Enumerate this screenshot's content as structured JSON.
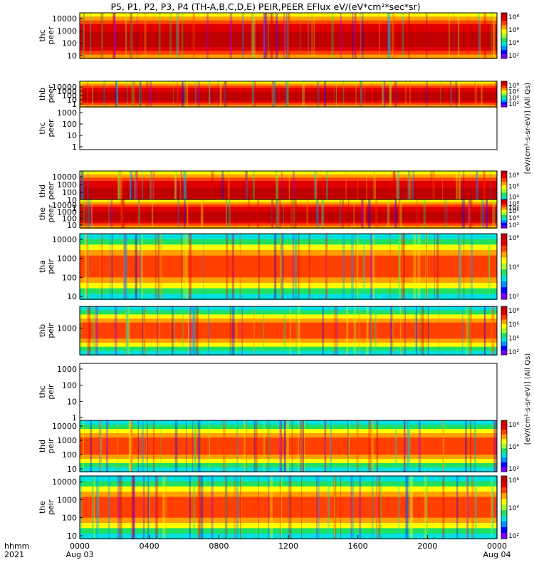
{
  "chart_data": {
    "type": "heatmap",
    "title": "P5, P1, P2, P3, P4 (TH-A,B,C,D,E) PEIR,PEER EFlux eV/(eV*cm²*sec*sr)",
    "x_axis": {
      "label_line1": "hhmm",
      "label_line2": "2021",
      "range_hours": [
        0,
        24
      ],
      "tick_labels": [
        "0000",
        "0400",
        "0800",
        "1200",
        "1600",
        "2000",
        "0000"
      ],
      "date_labels": [
        "Aug 03",
        "",
        "",
        "",
        "",
        "",
        "Aug 04"
      ]
    },
    "colorbar": {
      "electron_units": "[eV/(cm²-s-sr-eV)] (All Qs)",
      "ion_units": "[eV/(cm²-s-sr-eV)] (All Qs)",
      "colors": [
        "#7f00ff",
        "#0000ff",
        "#0090ff",
        "#00e0e0",
        "#20e060",
        "#a0ff30",
        "#ffff00",
        "#ffa000",
        "#ff4000",
        "#e00000",
        "#c00000"
      ]
    },
    "panels": [
      {
        "probe": "thc",
        "species": "peer",
        "yticks": [
          "10000",
          "1000",
          "100",
          "10"
        ],
        "cb_ticks": [
          "10⁸",
          "10⁶",
          "10⁴",
          "10²"
        ],
        "empty": false
      },
      {
        "probe": "thb",
        "species": "peer",
        "yticks": [
          "10000",
          "1000",
          "100",
          "10",
          "1"
        ],
        "cb_ticks": [
          "10⁸",
          "10⁶",
          "10⁴",
          "10²"
        ],
        "empty": false
      },
      {
        "probe": "thc",
        "species": "peer",
        "yticks": [
          "1000",
          "100",
          "10",
          "1"
        ],
        "cb_ticks": [],
        "empty": true
      },
      {
        "probe": "thd",
        "species": "peer",
        "yticks": [
          "10000",
          "1000",
          "100",
          "10",
          "1"
        ],
        "cb_ticks": [
          "10⁸",
          "10⁶",
          "10⁴",
          "10²"
        ],
        "empty": false
      },
      {
        "probe": "the",
        "species": "peer",
        "yticks": [
          "10000",
          "1000",
          "100",
          "10"
        ],
        "cb_ticks": [
          "10⁸",
          "10⁶",
          "10⁴",
          "10²"
        ],
        "empty": false
      },
      {
        "probe": "tha",
        "species": "peir",
        "yticks": [
          "10000",
          "1000",
          "100",
          "10"
        ],
        "cb_ticks": [
          "10⁶",
          "10⁴",
          "10²"
        ],
        "empty": false
      },
      {
        "probe": "thb",
        "species": "peir",
        "yticks": [
          "1000"
        ],
        "cb_ticks": [
          "10⁸",
          "10⁶",
          "10⁴",
          "10²"
        ],
        "empty": false
      },
      {
        "probe": "thc",
        "species": "peir",
        "yticks": [
          "1000",
          "100",
          "10",
          "1"
        ],
        "cb_ticks": [],
        "empty": true
      },
      {
        "probe": "thd",
        "species": "peir",
        "yticks": [
          "10000",
          "1000",
          "100",
          "10"
        ],
        "cb_ticks": [
          "10⁶",
          "10⁴",
          "10²"
        ],
        "empty": false
      },
      {
        "probe": "the",
        "species": "peir",
        "yticks": [
          "10000",
          "1000",
          "100",
          "10"
        ],
        "cb_ticks": [
          "10⁶",
          "10⁴",
          "10²"
        ],
        "empty": false
      }
    ]
  }
}
